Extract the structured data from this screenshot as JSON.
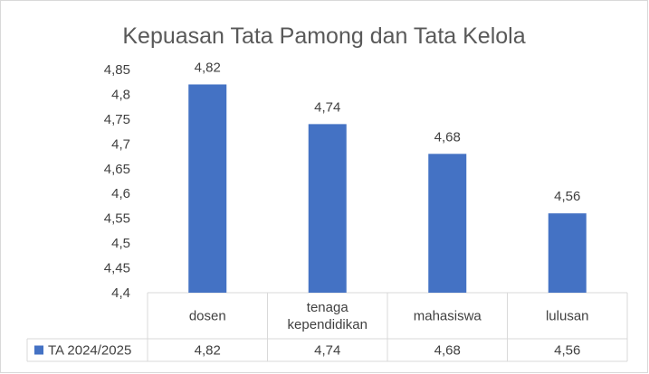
{
  "chart_data": {
    "type": "bar",
    "title": "Kepuasan Tata Pamong dan Tata Kelola",
    "categories": [
      [
        "dosen"
      ],
      [
        "tenaga",
        "kependidikan"
      ],
      [
        "mahasiswa"
      ],
      [
        "lulusan"
      ]
    ],
    "series": [
      {
        "name": "TA 2024/2025",
        "values": [
          4.82,
          4.74,
          4.68,
          4.56
        ],
        "color": "#4472C4"
      }
    ],
    "value_labels": [
      "4,82",
      "4,74",
      "4,68",
      "4,56"
    ],
    "ylim": [
      4.4,
      4.85
    ],
    "y_ticks": [
      "4,4",
      "4,45",
      "4,5",
      "4,55",
      "4,6",
      "4,65",
      "4,7",
      "4,75",
      "4,8",
      "4,85"
    ],
    "y_tick_values": [
      4.4,
      4.45,
      4.5,
      4.55,
      4.6,
      4.65,
      4.7,
      4.75,
      4.8,
      4.85
    ],
    "grid": false,
    "data_table": true,
    "legend": "data-table"
  }
}
